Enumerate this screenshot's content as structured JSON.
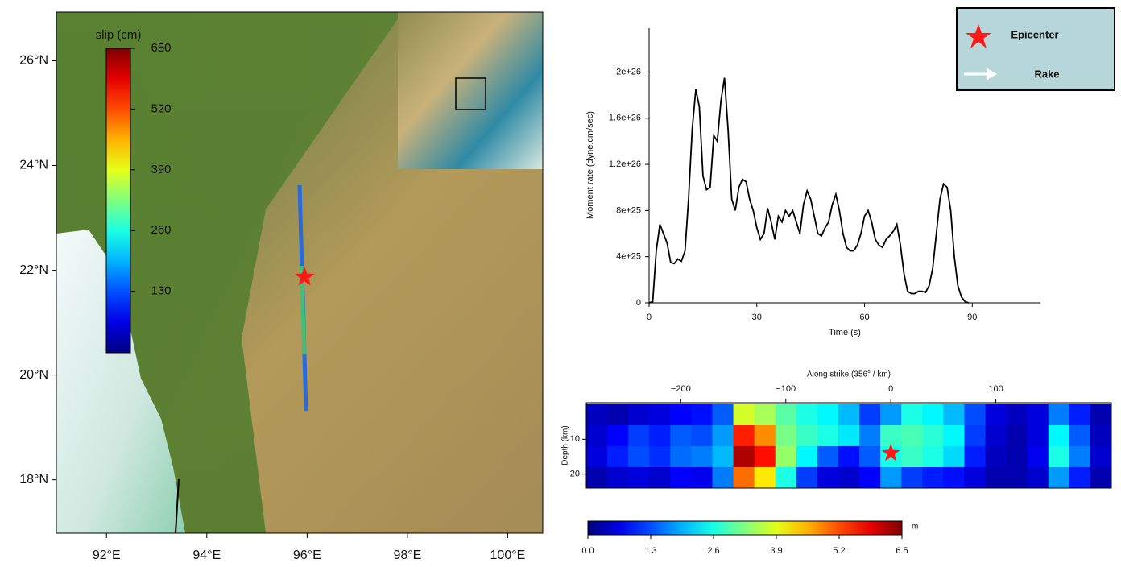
{
  "chart_data": [
    {
      "type": "map",
      "xlim": [
        91.0,
        100.7
      ],
      "ylim": [
        16.98,
        26.93
      ],
      "xticks": [
        {
          "value": 92,
          "label": "92°E"
        },
        {
          "value": 94,
          "label": "94°E"
        },
        {
          "value": 96,
          "label": "96°E"
        },
        {
          "value": 98,
          "label": "98°E"
        },
        {
          "value": 100,
          "label": "100°E"
        }
      ],
      "yticks": [
        {
          "value": 18,
          "label": "18°N"
        },
        {
          "value": 20,
          "label": "20°N"
        },
        {
          "value": 22,
          "label": "22°N"
        },
        {
          "value": 24,
          "label": "24°N"
        },
        {
          "value": 26,
          "label": "26°N"
        }
      ],
      "epicenter": {
        "x": 95.95,
        "y": 21.87
      },
      "marker_color": "#ff1a1a",
      "colorbar": {
        "label": "slip (cm)",
        "lim": [
          0,
          650
        ],
        "ticks": [
          130,
          260,
          390,
          520,
          650
        ]
      }
    },
    {
      "type": "line",
      "color": "#000000",
      "xlabel": "Time (s)",
      "ylabel": "Moment rate (dyne.cm/sec)",
      "xlim": [
        0,
        109
      ],
      "ylim": [
        0,
        2.38e+26
      ],
      "xticks": [
        0,
        30,
        60,
        90
      ],
      "yticks": [
        0,
        4e+25,
        8e+25,
        1.2e+26,
        1.6e+26,
        2e+26
      ],
      "x": [
        0,
        1,
        2,
        3,
        4,
        5,
        6,
        7,
        8,
        9,
        10,
        11,
        12,
        13,
        14,
        15,
        16,
        17,
        18,
        19,
        20,
        21,
        22,
        23,
        24,
        25,
        26,
        27,
        28,
        29,
        30,
        31,
        32,
        33,
        34,
        35,
        36,
        37,
        38,
        39,
        40,
        41,
        42,
        43,
        44,
        45,
        46,
        47,
        48,
        49,
        50,
        51,
        52,
        53,
        54,
        55,
        56,
        57,
        58,
        59,
        60,
        61,
        62,
        63,
        64,
        65,
        66,
        67,
        68,
        69,
        70,
        71,
        72,
        73,
        74,
        75,
        76,
        77,
        78,
        79,
        80,
        81,
        82,
        83,
        84,
        85,
        86,
        87,
        88,
        89
      ],
      "values": [
        0,
        1e+24,
        4.5e+25,
        6.8e+25,
        6e+25,
        5.2e+25,
        3.5e+25,
        3.4e+25,
        3.8e+25,
        3.6e+25,
        4.5e+25,
        9e+25,
        1.5e+26,
        1.85e+26,
        1.7e+26,
        1.1e+26,
        9.8e+25,
        1e+26,
        1.45e+26,
        1.4e+26,
        1.75e+26,
        1.95e+26,
        1.5e+26,
        9e+25,
        8e+25,
        1e+26,
        1.07e+26,
        1.05e+26,
        9e+25,
        8e+25,
        6.5e+25,
        5.5e+25,
        6e+25,
        8.2e+25,
        7e+25,
        5.5e+25,
        7.5e+25,
        7e+25,
        8e+25,
        7.5e+25,
        8e+25,
        7e+25,
        6e+25,
        8.5e+25,
        9.7e+25,
        9e+25,
        7.5e+25,
        6e+25,
        5.8e+25,
        6.5e+25,
        7e+25,
        8.5e+25,
        9.4e+25,
        8e+25,
        6e+25,
        4.8e+25,
        4.5e+25,
        4.5e+25,
        5e+25,
        6e+25,
        7.5e+25,
        8e+25,
        7e+25,
        5.5e+25,
        5e+25,
        4.8e+25,
        5.5e+25,
        5.8e+25,
        6.2e+25,
        6.8e+25,
        5e+25,
        2.5e+25,
        1e+25,
        8e+24,
        8e+24,
        1e+25,
        1e+25,
        9e+24,
        1.5e+25,
        3e+25,
        6e+25,
        9e+25,
        1.03e+26,
        1e+26,
        8e+25,
        4e+25,
        1.5e+25,
        5e+24,
        1e+24,
        0
      ]
    },
    {
      "type": "heatmap",
      "title": "Along strike (356° / km)",
      "ylabel": "Depth (km)",
      "xlim": [
        -290,
        210
      ],
      "ylim": [
        0,
        24
      ],
      "xticks": [
        {
          "value": -200,
          "label": "−200"
        },
        {
          "value": -100,
          "label": "−100"
        },
        0,
        100
      ],
      "yticks": [
        10,
        20
      ],
      "xbins": [
        -290,
        -270,
        -250,
        -230,
        -210,
        -190,
        -170,
        -150,
        -130,
        -110,
        -90,
        -70,
        -50,
        -30,
        -10,
        10,
        30,
        50,
        70,
        90,
        110,
        130,
        150,
        170,
        190,
        210
      ],
      "ybins": [
        0,
        6,
        12,
        18,
        24
      ],
      "slip": [
        [
          0.4,
          0.3,
          0.5,
          0.6,
          0.8,
          0.9,
          1.4,
          3.8,
          3.5,
          3.0,
          2.6,
          2.4,
          2.0,
          1.2,
          1.8,
          2.6,
          2.4,
          2.0,
          1.3,
          0.6,
          0.4,
          0.6,
          1.6,
          1.0,
          0.3
        ],
        [
          0.5,
          0.8,
          1.2,
          1.0,
          1.4,
          1.3,
          1.8,
          5.5,
          4.8,
          3.2,
          2.8,
          2.6,
          2.3,
          1.6,
          2.8,
          2.9,
          2.7,
          2.4,
          1.2,
          0.5,
          0.3,
          0.6,
          2.4,
          1.4,
          0.4
        ],
        [
          0.6,
          1.0,
          1.3,
          1.1,
          1.5,
          1.6,
          2.0,
          6.2,
          5.6,
          3.4,
          2.4,
          1.4,
          0.9,
          1.4,
          2.6,
          2.8,
          2.6,
          2.2,
          1.0,
          0.4,
          0.3,
          0.7,
          2.6,
          1.6,
          0.5
        ],
        [
          0.3,
          0.5,
          0.6,
          0.5,
          0.8,
          0.7,
          1.6,
          5.0,
          4.2,
          2.6,
          1.2,
          0.6,
          0.5,
          0.8,
          1.8,
          1.2,
          1.0,
          0.9,
          0.6,
          0.3,
          0.3,
          0.5,
          1.8,
          1.0,
          0.3
        ]
      ],
      "epicenter": {
        "x": 0,
        "y": 14
      },
      "marker_color": "#ff1a1a",
      "colorbar": {
        "label": "m",
        "lim": [
          0,
          6.5
        ],
        "ticks": [
          {
            "value": 0,
            "label": "0.0"
          },
          1.3,
          2.6,
          3.9,
          5.2,
          6.5
        ]
      }
    }
  ],
  "legend": {
    "items": [
      "Epicenter",
      "Rake"
    ]
  }
}
